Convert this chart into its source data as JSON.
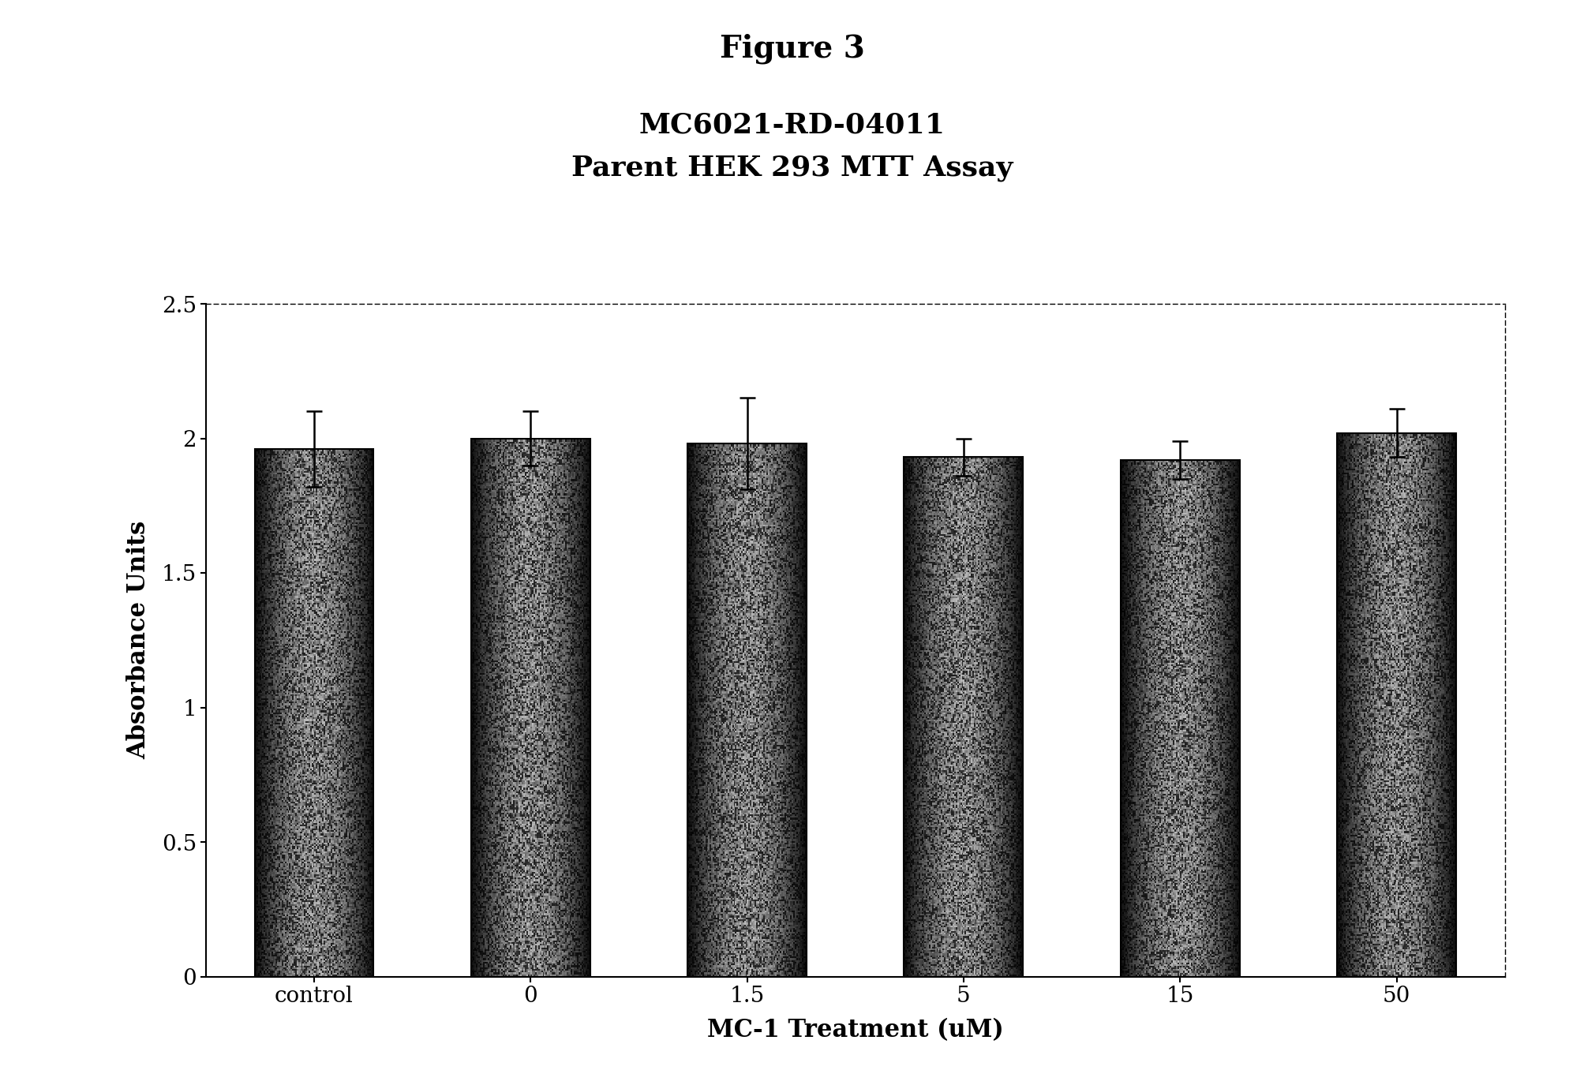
{
  "title_line1": "Figure 3",
  "subtitle_line1": "MC6021-RD-04011",
  "subtitle_line2": "Parent HEK 293 MTT Assay",
  "categories": [
    "control",
    "0",
    "1.5",
    "5",
    "15",
    "50"
  ],
  "values": [
    1.96,
    2.0,
    1.98,
    1.93,
    1.92,
    2.02
  ],
  "errors": [
    0.14,
    0.1,
    0.17,
    0.07,
    0.07,
    0.09
  ],
  "xlabel": "MC-1 Treatment (uM)",
  "ylabel": "Absorbance Units",
  "ylim": [
    0,
    2.5
  ],
  "yticks": [
    0,
    0.5,
    1.0,
    1.5,
    2.0,
    2.5
  ],
  "ytick_labels": [
    "0",
    "0.5",
    "1",
    "1.5",
    "2",
    "2.5"
  ],
  "bar_edge_color": "#000000",
  "background_color": "#ffffff",
  "figsize": [
    20.07,
    13.75
  ],
  "dpi": 100
}
